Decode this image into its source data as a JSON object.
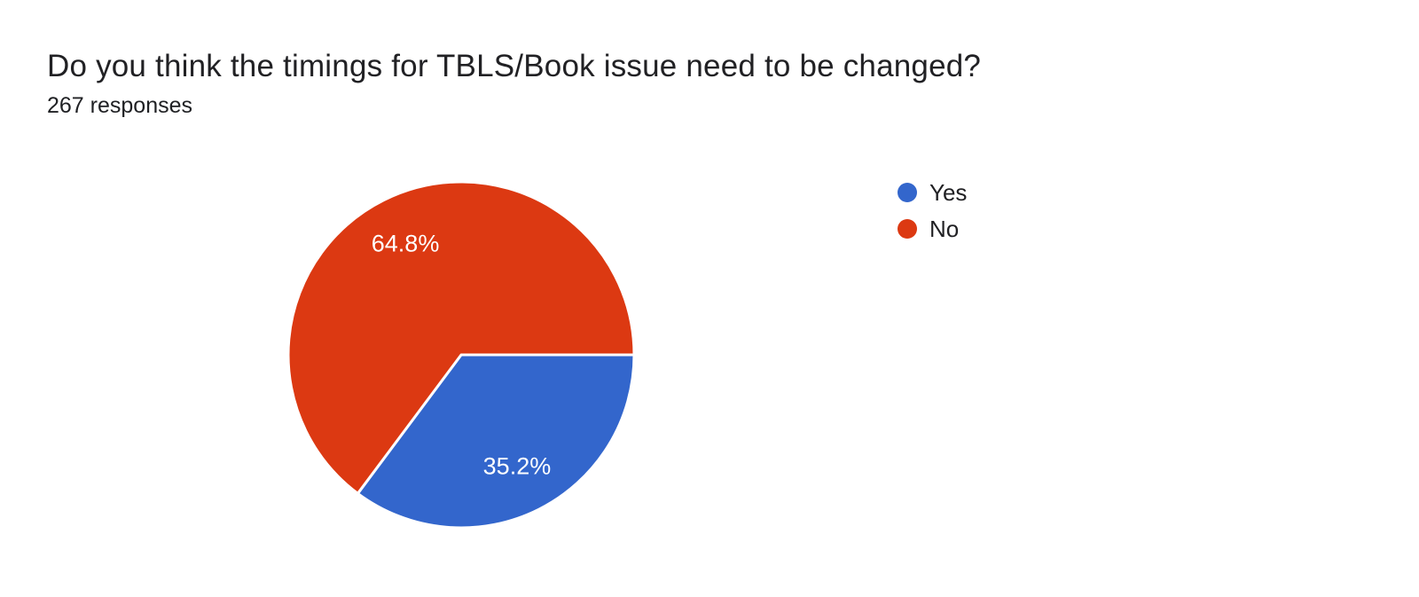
{
  "header": {
    "title": "Do you think the timings for TBLS/Book issue need to be changed?",
    "responses_label": "267 responses"
  },
  "chart_data": {
    "type": "pie",
    "title": "Do you think the timings for TBLS/Book issue need to be changed?",
    "responses_count": 267,
    "labels": [
      "Yes",
      "No"
    ],
    "values": [
      35.2,
      64.8
    ],
    "value_labels": [
      "35.2%",
      "64.8%"
    ],
    "colors": [
      "#3366cc",
      "#dc3912"
    ],
    "slice_label_color": "#ffffff",
    "start_angle_deg": 0,
    "direction": "clockwise",
    "legend_position": "right",
    "background": "#ffffff"
  },
  "legend": {
    "items": [
      {
        "label": "Yes",
        "color": "#3366cc"
      },
      {
        "label": "No",
        "color": "#dc3912"
      }
    ]
  }
}
